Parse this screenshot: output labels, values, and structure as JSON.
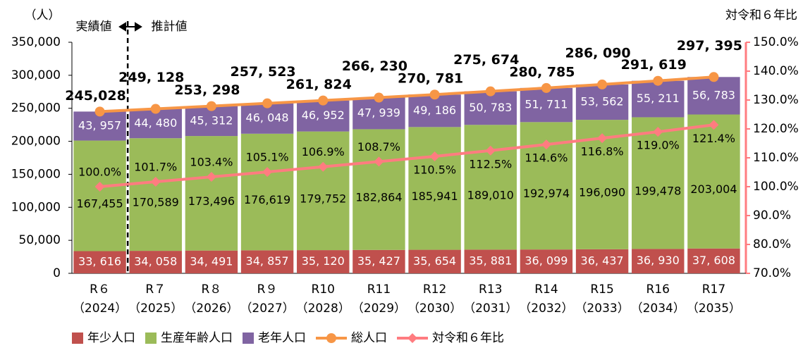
{
  "chart_data": {
    "type": "bar",
    "y_label": "（人）",
    "y2_label": "対令和６年比",
    "annotation_left": "実績値",
    "annotation_right": "推計値",
    "categories": [
      [
        "R６",
        "（2024）"
      ],
      [
        "R７",
        "（2025）"
      ],
      [
        "R８",
        "（2026）"
      ],
      [
        "R９",
        "（2027）"
      ],
      [
        "R10",
        "（2028）"
      ],
      [
        "R11",
        "（2029）"
      ],
      [
        "R12",
        "（2030）"
      ],
      [
        "R13",
        "（2031）"
      ],
      [
        "R14",
        "（2032）"
      ],
      [
        "R15",
        "（2033）"
      ],
      [
        "R16",
        "（2034）"
      ],
      [
        "R17",
        "（2035）"
      ]
    ],
    "ylim": [
      0,
      350000
    ],
    "yticks": [
      0,
      {
        "value": 50000,
        "label": "50,000"
      },
      {
        "value": 100000,
        "label": "100,000"
      },
      {
        "value": 150000,
        "label": "150,000"
      },
      {
        "value": 200000,
        "label": "200,000"
      },
      {
        "value": 250000,
        "label": "250,000"
      },
      {
        "value": 300000,
        "label": "300,000"
      },
      {
        "value": 350000,
        "label": "350,000"
      }
    ],
    "y2lim": [
      70,
      150
    ],
    "y2ticks": [
      {
        "value": 70,
        "label": "70.0%"
      },
      {
        "value": 80,
        "label": "80.0%"
      },
      {
        "value": 90,
        "label": "90.0%"
      },
      {
        "value": 100,
        "label": "100.0%"
      },
      {
        "value": 110,
        "label": "110.0%"
      },
      {
        "value": 120,
        "label": "120.0%"
      },
      {
        "value": 130,
        "label": "130.0%"
      },
      {
        "value": 140,
        "label": "140.0%"
      },
      {
        "value": 150,
        "label": "150.0%"
      }
    ],
    "series": [
      {
        "name": "年少人口",
        "type": "bar",
        "color": "#c0504d",
        "values": [
          33616,
          34058,
          34491,
          34857,
          35120,
          35427,
          35654,
          35881,
          36099,
          36437,
          36930,
          37608
        ],
        "value_labels": [
          "33, 616",
          "34, 058",
          "34, 491",
          "34, 857",
          "35, 120",
          "35, 427",
          "35, 654",
          "35, 881",
          "36, 099",
          "36, 437",
          "36, 930",
          "37, 608"
        ]
      },
      {
        "name": "生産年齢人口",
        "type": "bar",
        "color": "#9bbb59",
        "values": [
          167455,
          170589,
          173496,
          176619,
          179752,
          182864,
          185941,
          189010,
          192974,
          196090,
          199478,
          203004
        ],
        "value_labels": [
          "167,455",
          "170,589",
          "173,496",
          "176,619",
          "179,752",
          "182,864",
          "185,941",
          "189,010",
          "192,974",
          "196,090",
          "199,478",
          "203,004"
        ]
      },
      {
        "name": "老年人口",
        "type": "bar",
        "color": "#8064a2",
        "values": [
          43957,
          44480,
          45312,
          46048,
          46952,
          47939,
          49186,
          50783,
          51711,
          53562,
          55211,
          56783
        ],
        "value_labels": [
          "43, 957",
          "44, 480",
          "45, 312",
          "46, 048",
          "46, 952",
          "47, 939",
          "49, 186",
          "50, 783",
          "51, 711",
          "53, 562",
          "55, 211",
          "56, 783"
        ]
      },
      {
        "name": "総人口",
        "type": "line",
        "marker": "circle",
        "color": "#f79646",
        "values": [
          245028,
          249128,
          253298,
          257523,
          261824,
          266230,
          270781,
          275674,
          280785,
          286090,
          291619,
          297395
        ],
        "value_labels": [
          "245,028",
          "249, 128",
          "253, 298",
          "257, 523",
          "261, 824",
          "266, 230",
          "270, 781",
          "275, 674",
          "280, 785",
          "286, 090",
          "291, 619",
          "297, 395"
        ]
      },
      {
        "name": "対令和６年比",
        "type": "line",
        "marker": "diamond",
        "axis": "y2",
        "color": "#ff7c80",
        "values": [
          100.0,
          101.7,
          103.4,
          105.1,
          106.9,
          108.7,
          110.5,
          112.5,
          114.6,
          116.8,
          119.0,
          121.4
        ],
        "value_labels": [
          "100.0%",
          "101.7%",
          "103.4%",
          "105.1%",
          "106.9%",
          "108.7%",
          "110.5%",
          "112.5%",
          "114.6%",
          "116.8%",
          "119.0%",
          "121.4%"
        ]
      }
    ]
  }
}
